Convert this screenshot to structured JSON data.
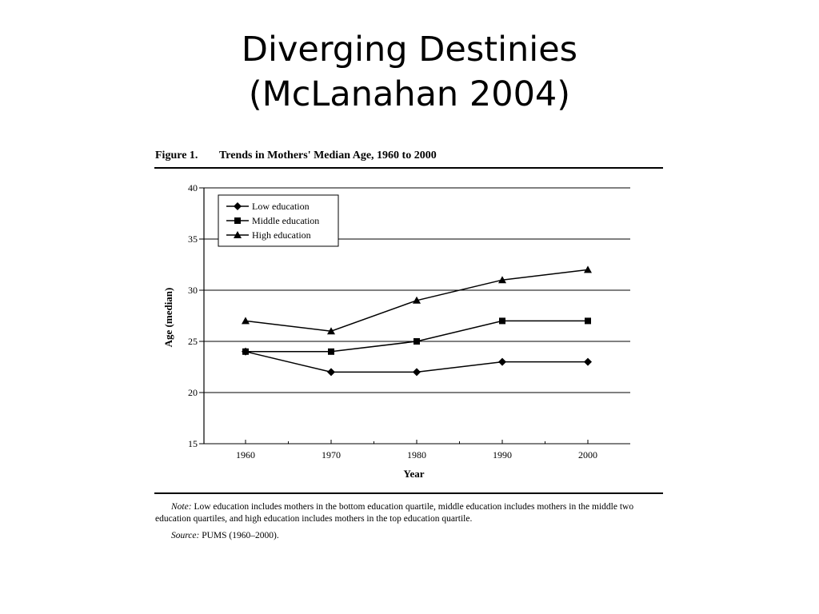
{
  "slide": {
    "title_line1": "Diverging Destinies",
    "title_line2": "(McLanahan 2004)"
  },
  "figure": {
    "label": "Figure 1.",
    "caption": "Trends in Mothers' Median Age, 1960 to 2000",
    "note_label": "Note:",
    "note_text": "Low education includes mothers in the bottom education quartile, middle education includes mothers in the middle two education quartiles, and high education includes mothers in the top education quartile.",
    "source_label": "Source:",
    "source_text": "PUMS (1960–2000)."
  },
  "chart_data": {
    "type": "line",
    "title": "Trends in Mothers' Median Age, 1960 to 2000",
    "xlabel": "Year",
    "ylabel": "Age (median)",
    "x": [
      1960,
      1970,
      1980,
      1990,
      2000
    ],
    "ylim": [
      15,
      40
    ],
    "yticks": [
      15,
      20,
      25,
      30,
      35,
      40
    ],
    "grid": "horizontal",
    "legend_position": "top-left",
    "color": "#000000",
    "series": [
      {
        "name": "Low education",
        "marker": "diamond",
        "values": [
          24,
          22,
          22,
          23,
          23
        ]
      },
      {
        "name": "Middle education",
        "marker": "square",
        "values": [
          24,
          24,
          25,
          27,
          27
        ]
      },
      {
        "name": "High education",
        "marker": "triangle",
        "values": [
          27,
          26,
          29,
          31,
          32
        ]
      }
    ]
  }
}
